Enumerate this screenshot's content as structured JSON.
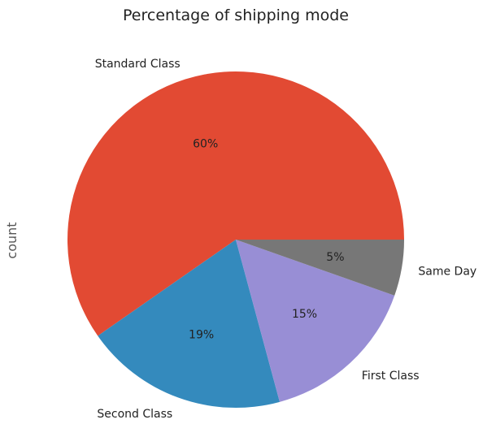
{
  "chart_data": {
    "type": "pie",
    "title": "Percentage of shipping mode",
    "ylabel": "count",
    "categories": [
      "Standard Class",
      "Second Class",
      "First Class",
      "Same Day"
    ],
    "values": [
      59.7,
      19.5,
      15.4,
      5.4
    ],
    "pct_labels": [
      "60%",
      "19%",
      "15%",
      "5%"
    ],
    "colors": [
      "#E24A33",
      "#348ABD",
      "#988ED5",
      "#777777"
    ],
    "start_angle_deg": 0,
    "direction": "counterclockwise",
    "legend": "none"
  }
}
